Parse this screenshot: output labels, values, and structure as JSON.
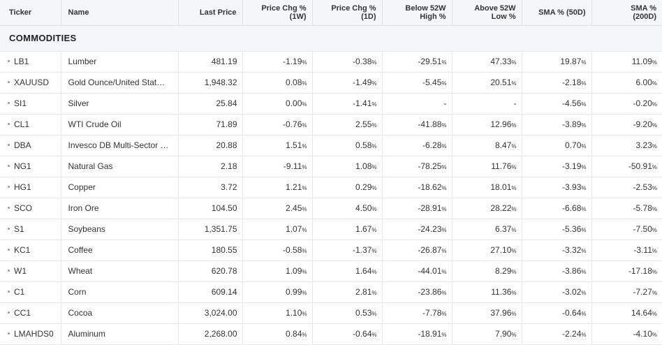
{
  "colors": {
    "positive": "#1f8a3b",
    "negative": "#d93025",
    "neutral": "#555555"
  },
  "columns": {
    "ticker": "Ticker",
    "name": "Name",
    "last_price": "Last Price",
    "chg_1w": [
      "Price Chg %",
      "(1W)"
    ],
    "chg_1d": [
      "Price Chg %",
      "(1D)"
    ],
    "below_52w": [
      "Below 52W",
      "High %"
    ],
    "above_52w": [
      "Above 52W",
      "Low %"
    ],
    "sma50": "SMA % (50D)",
    "sma200": [
      "SMA %",
      "(200D)"
    ]
  },
  "section_title": "COMMODITIES",
  "rows": [
    {
      "ticker": "LB1",
      "name": "Lumber",
      "price": "481.19",
      "chg_1w": "-1.19",
      "chg_1d": "-0.38",
      "below_52w": "-29.51",
      "above_52w": "47.33",
      "sma50": "19.87",
      "sma200": "11.09"
    },
    {
      "ticker": "XAUUSD",
      "name": "Gold Ounce/United Stat…",
      "price": "1,948.32",
      "chg_1w": "0.08",
      "chg_1d": "-1.49",
      "below_52w": "-5.45",
      "above_52w": "20.51",
      "sma50": "-2.18",
      "sma200": "6.00"
    },
    {
      "ticker": "SI1",
      "name": "Silver",
      "price": "25.84",
      "chg_1w": "0.00",
      "chg_1d": "-1.41",
      "below_52w": "-",
      "above_52w": "-",
      "sma50": "-4.56",
      "sma200": "-0.20"
    },
    {
      "ticker": "CL1",
      "name": "WTI Crude Oil",
      "price": "71.89",
      "chg_1w": "-0.76",
      "chg_1d": "2.55",
      "below_52w": "-41.88",
      "above_52w": "12.96",
      "sma50": "-3.89",
      "sma200": "-9.20"
    },
    {
      "ticker": "DBA",
      "name": "Invesco DB Multi-Sector …",
      "price": "20.88",
      "chg_1w": "1.51",
      "chg_1d": "0.58",
      "below_52w": "-6.28",
      "above_52w": "8.47",
      "sma50": "0.70",
      "sma200": "3.23"
    },
    {
      "ticker": "NG1",
      "name": "Natural Gas",
      "price": "2.18",
      "chg_1w": "-9.11",
      "chg_1d": "1.08",
      "below_52w": "-78.25",
      "above_52w": "11.76",
      "sma50": "-3.19",
      "sma200": "-50.91"
    },
    {
      "ticker": "HG1",
      "name": "Copper",
      "price": "3.72",
      "chg_1w": "1.21",
      "chg_1d": "0.29",
      "below_52w": "-18.62",
      "above_52w": "18.01",
      "sma50": "-3.93",
      "sma200": "-2.53"
    },
    {
      "ticker": "SCO",
      "name": "Iron Ore",
      "price": "104.50",
      "chg_1w": "2.45",
      "chg_1d": "4.50",
      "below_52w": "-28.91",
      "above_52w": "28.22",
      "sma50": "-6.68",
      "sma200": "-5.78"
    },
    {
      "ticker": "S1",
      "name": "Soybeans",
      "price": "1,351.75",
      "chg_1w": "1.07",
      "chg_1d": "1.67",
      "below_52w": "-24.23",
      "above_52w": "6.37",
      "sma50": "-5.36",
      "sma200": "-7.50"
    },
    {
      "ticker": "KC1",
      "name": "Coffee",
      "price": "180.55",
      "chg_1w": "-0.58",
      "chg_1d": "-1.37",
      "below_52w": "-26.87",
      "above_52w": "27.10",
      "sma50": "-3.32",
      "sma200": "-3.11"
    },
    {
      "ticker": "W1",
      "name": "Wheat",
      "price": "620.78",
      "chg_1w": "1.09",
      "chg_1d": "1.64",
      "below_52w": "-44.01",
      "above_52w": "8.29",
      "sma50": "-3.86",
      "sma200": "-17.18"
    },
    {
      "ticker": "C1",
      "name": "Corn",
      "price": "609.14",
      "chg_1w": "0.99",
      "chg_1d": "2.81",
      "below_52w": "-23.86",
      "above_52w": "11.36",
      "sma50": "-3.02",
      "sma200": "-7.27"
    },
    {
      "ticker": "CC1",
      "name": "Cocoa",
      "price": "3,024.00",
      "chg_1w": "1.10",
      "chg_1d": "0.53",
      "below_52w": "-7.78",
      "above_52w": "37.96",
      "sma50": "-0.64",
      "sma200": "14.64"
    },
    {
      "ticker": "LMAHDS0",
      "name": "Aluminum",
      "price": "2,268.00",
      "chg_1w": "0.84",
      "chg_1d": "-0.64",
      "below_52w": "-18.91",
      "above_52w": "7.90",
      "sma50": "-2.24",
      "sma200": "-4.10"
    }
  ],
  "percent_suffix": "%"
}
